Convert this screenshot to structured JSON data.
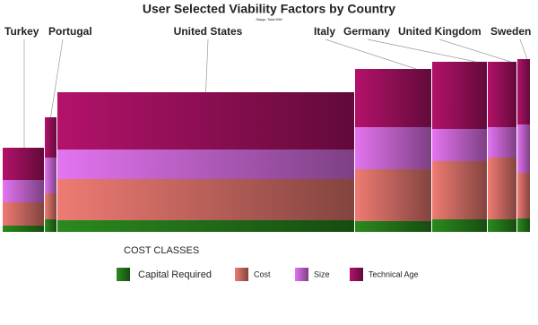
{
  "chart_data": {
    "type": "mekko",
    "title": "User Selected Viability Factors by Country",
    "subtitle": "Stage: Total MW",
    "legend_title": "COST CLASSES",
    "categories": [
      "Turkey",
      "Portugal",
      "United States",
      "Italy",
      "Germany",
      "United Kingdom",
      "Sweden"
    ],
    "widths": [
      47,
      14,
      332,
      86,
      62,
      33,
      15
    ],
    "series": [
      {
        "name": "Capital Required",
        "color": "#2a8a1e",
        "values": [
          7,
          14,
          13,
          12,
          14,
          14,
          15
        ]
      },
      {
        "name": "Cost",
        "color": "#ee7b73",
        "values": [
          26,
          29,
          46,
          58,
          65,
          69,
          51
        ]
      },
      {
        "name": "Size",
        "color": "#e374f0",
        "values": [
          25,
          40,
          33,
          47,
          36,
          34,
          54
        ]
      },
      {
        "name": "Technical Age",
        "color": "#b3126a",
        "values": [
          36,
          45,
          64,
          65,
          75,
          73,
          73
        ]
      }
    ]
  }
}
